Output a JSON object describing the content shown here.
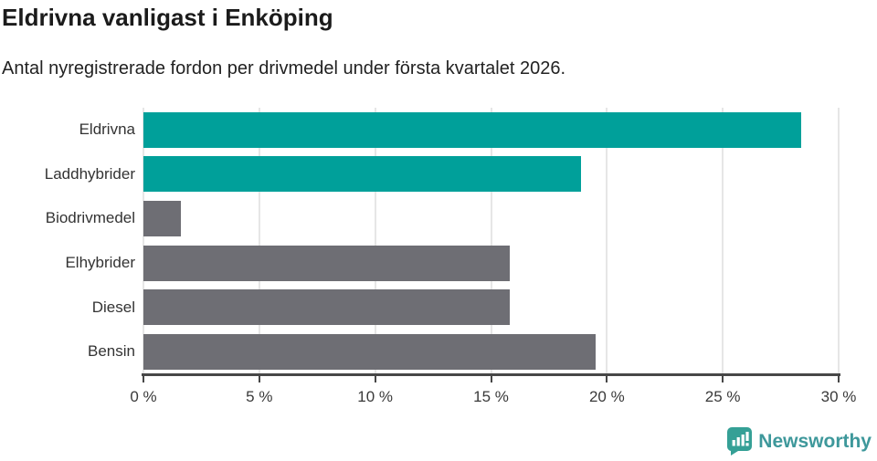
{
  "header": {
    "title": "Eldrivna vanligast i Enköping",
    "subtitle": "Antal nyregistrerade fordon per drivmedel under första kvartalet 2026."
  },
  "chart_data": {
    "type": "bar",
    "orientation": "horizontal",
    "title": "Eldrivna vanligast i Enköping",
    "subtitle": "Antal nyregistrerade fordon per drivmedel under första kvartalet 2026.",
    "categories": [
      "Eldrivna",
      "Laddhybrider",
      "Biodrivmedel",
      "Elhybrider",
      "Diesel",
      "Bensin"
    ],
    "values": [
      28.4,
      18.9,
      1.6,
      15.8,
      15.8,
      19.5
    ],
    "unit": "%",
    "xlabel": "",
    "ylabel": "",
    "xlim": [
      0,
      30
    ],
    "xticks": [
      0,
      5,
      10,
      15,
      20,
      25,
      30
    ],
    "xtick_labels": [
      "0 %",
      "5 %",
      "10 %",
      "15 %",
      "20 %",
      "25 %",
      "30 %"
    ],
    "bar_colors": [
      "#00a09a",
      "#00a09a",
      "#6e6e74",
      "#6e6e74",
      "#6e6e74",
      "#6e6e74"
    ],
    "grid": "vertical-gridlines-on",
    "legend": "none"
  },
  "colors": {
    "accent_teal": "#00a09a",
    "neutral_gray": "#6e6e74",
    "gridline": "#e6e6e6",
    "axis": "#474747",
    "brand_icon": "#35a096",
    "brand_text": "#3e989b"
  },
  "footer": {
    "brand": "Newsworthy"
  }
}
